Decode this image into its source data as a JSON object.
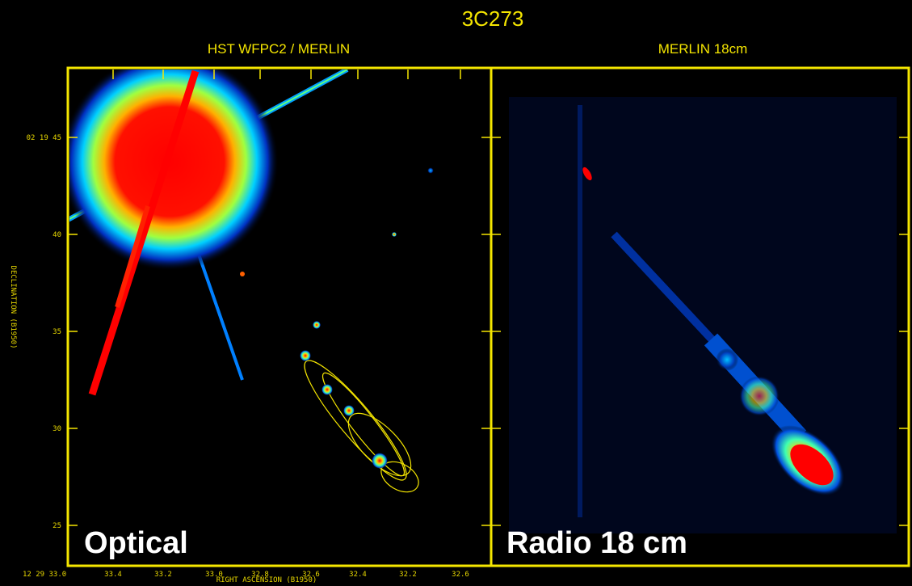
{
  "title": "3C273",
  "panels": [
    {
      "title": "HST WFPC2 / MERLIN",
      "label": "Optical"
    },
    {
      "title": "MERLIN 18cm",
      "label": "Radio 18 cm"
    }
  ],
  "y_axis": {
    "label": "DECLINATION (B1950)",
    "ticks": [
      "02 19 45",
      "40",
      "35",
      "30",
      "25"
    ]
  },
  "x_axis": {
    "label": "RIGHT ASCENSION (B1950)",
    "ticks": [
      "12 29 33.0",
      "33.4",
      "33.2",
      "33.0",
      "32.8",
      "32.6",
      "32.4",
      "32.2",
      "32.6"
    ]
  }
}
